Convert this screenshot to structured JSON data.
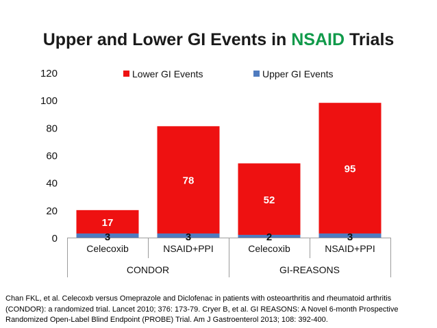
{
  "title": {
    "prefix": "Upper and Lower GI Events in ",
    "highlight": "NSAID",
    "suffix": " Trials",
    "highlight_color": "#109a4a"
  },
  "chart_data": {
    "type": "bar",
    "stacked": true,
    "categories": [
      "Celecoxib",
      "NSAID+PPI",
      "Celecoxib",
      "NSAID+PPI"
    ],
    "groups": [
      {
        "label": "CONDOR",
        "categories": [
          0,
          1
        ]
      },
      {
        "label": "GI-REASONS",
        "categories": [
          2,
          3
        ]
      }
    ],
    "series": [
      {
        "name": "Upper GI Events",
        "values": [
          3,
          3,
          2,
          3
        ],
        "color": "#4f7bbf"
      },
      {
        "name": "Lower GI Events",
        "values": [
          17,
          78,
          52,
          95
        ],
        "color": "#ee1111"
      }
    ],
    "totals": [
      20,
      81,
      54,
      98
    ],
    "ylim": [
      0,
      120
    ],
    "yticks": [
      0,
      20,
      40,
      60,
      80,
      100,
      120
    ],
    "grid": false,
    "legend": "top"
  },
  "citation": "Chan FKL, et al. Celecoxb versus Omeprazole and Diclofenac in patients with osteoarthritis and rheumatoid arthritis (CONDOR): a randomized trial. Lancet 2010; 376: 173-79. Cryer B, et al. GI REASONS: A Novel 6-month Prospective Randomized Open-Label Blind Endpoint (PROBE) Trial. Am J Gastroenterol 2013; 108: 392-400."
}
